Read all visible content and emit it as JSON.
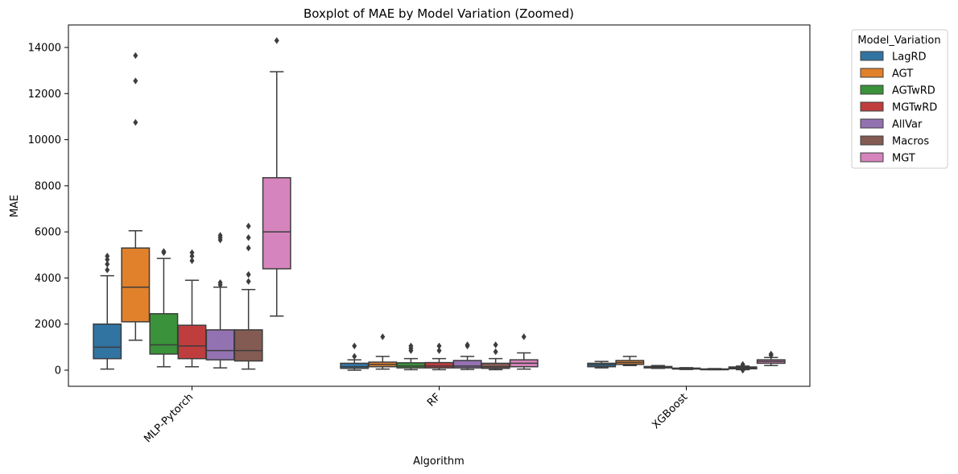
{
  "chart_data": {
    "type": "boxplot",
    "title": "Boxplot of MAE by Model Variation (Zoomed)",
    "xlabel": "Algorithm",
    "ylabel": "MAE",
    "ylim": [
      -700,
      15000
    ],
    "yticks": [
      0,
      2000,
      4000,
      6000,
      8000,
      10000,
      12000,
      14000
    ],
    "grid": false,
    "categories": [
      "MLP-Pytorch",
      "RF",
      "XGBoost"
    ],
    "legend": {
      "title": "Model_Variation",
      "position": "outside-top-right"
    },
    "series": [
      {
        "name": "LagRD",
        "color": "#3274a1",
        "boxes": [
          {
            "whislo": 50,
            "q1": 500,
            "med": 1000,
            "q3": 2000,
            "whishi": 4100,
            "fliers": [
              4350,
              4600,
              4800,
              4950
            ]
          },
          {
            "whislo": 0,
            "q1": 80,
            "med": 150,
            "q3": 300,
            "whishi": 450,
            "fliers": [
              600,
              1050
            ]
          },
          {
            "whislo": 100,
            "q1": 150,
            "med": 230,
            "q3": 300,
            "whishi": 380,
            "fliers": []
          }
        ]
      },
      {
        "name": "AGT",
        "color": "#e1812c",
        "boxes": [
          {
            "whislo": 1300,
            "q1": 2100,
            "med": 3600,
            "q3": 5300,
            "whishi": 6050,
            "fliers": [
              10750,
              12550,
              13650
            ]
          },
          {
            "whislo": 50,
            "q1": 150,
            "med": 250,
            "q3": 350,
            "whishi": 600,
            "fliers": [
              1450
            ]
          },
          {
            "whislo": 200,
            "q1": 250,
            "med": 330,
            "q3": 420,
            "whishi": 600,
            "fliers": []
          }
        ]
      },
      {
        "name": "AGTwRD",
        "color": "#3a923a",
        "boxes": [
          {
            "whislo": 150,
            "q1": 700,
            "med": 1100,
            "q3": 2450,
            "whishi": 4850,
            "fliers": [
              5100,
              5150
            ]
          },
          {
            "whislo": 20,
            "q1": 100,
            "med": 180,
            "q3": 320,
            "whishi": 500,
            "fliers": [
              850,
              950,
              1050
            ]
          },
          {
            "whislo": 80,
            "q1": 100,
            "med": 130,
            "q3": 160,
            "whishi": 200,
            "fliers": []
          }
        ]
      },
      {
        "name": "MGTwRD",
        "color": "#c03d3e",
        "boxes": [
          {
            "whislo": 150,
            "q1": 500,
            "med": 1050,
            "q3": 1950,
            "whishi": 3900,
            "fliers": [
              4750,
              4950,
              5100
            ]
          },
          {
            "whislo": 20,
            "q1": 100,
            "med": 180,
            "q3": 330,
            "whishi": 500,
            "fliers": [
              850,
              1050
            ]
          },
          {
            "whislo": 30,
            "q1": 50,
            "med": 70,
            "q3": 90,
            "whishi": 110,
            "fliers": []
          }
        ]
      },
      {
        "name": "AllVar",
        "color": "#9372b2",
        "boxes": [
          {
            "whislo": 100,
            "q1": 450,
            "med": 850,
            "q3": 1750,
            "whishi": 3600,
            "fliers": [
              3700,
              3800,
              5650,
              5750,
              5850
            ]
          },
          {
            "whislo": 30,
            "q1": 100,
            "med": 180,
            "q3": 420,
            "whishi": 600,
            "fliers": [
              1050,
              1100
            ]
          },
          {
            "whislo": 20,
            "q1": 30,
            "med": 40,
            "q3": 55,
            "whishi": 70,
            "fliers": []
          }
        ]
      },
      {
        "name": "Macros",
        "color": "#845b53",
        "boxes": [
          {
            "whislo": 50,
            "q1": 400,
            "med": 850,
            "q3": 1750,
            "whishi": 3500,
            "fliers": [
              3850,
              4150,
              5300,
              5750,
              6250
            ]
          },
          {
            "whislo": 20,
            "q1": 80,
            "med": 150,
            "q3": 300,
            "whishi": 500,
            "fliers": [
              800,
              1100
            ]
          },
          {
            "whislo": 20,
            "q1": 60,
            "med": 100,
            "q3": 140,
            "whishi": 180,
            "fliers": [
              0,
              100,
              250
            ]
          }
        ]
      },
      {
        "name": "MGT",
        "color": "#d684bd",
        "boxes": [
          {
            "whislo": 2350,
            "q1": 4400,
            "med": 6000,
            "q3": 8350,
            "whishi": 12950,
            "fliers": [
              14300
            ]
          },
          {
            "whislo": 50,
            "q1": 150,
            "med": 300,
            "q3": 450,
            "whishi": 750,
            "fliers": [
              1450
            ]
          },
          {
            "whislo": 200,
            "q1": 300,
            "med": 380,
            "q3": 450,
            "whishi": 550,
            "fliers": [
              650,
              700
            ]
          }
        ]
      }
    ]
  }
}
